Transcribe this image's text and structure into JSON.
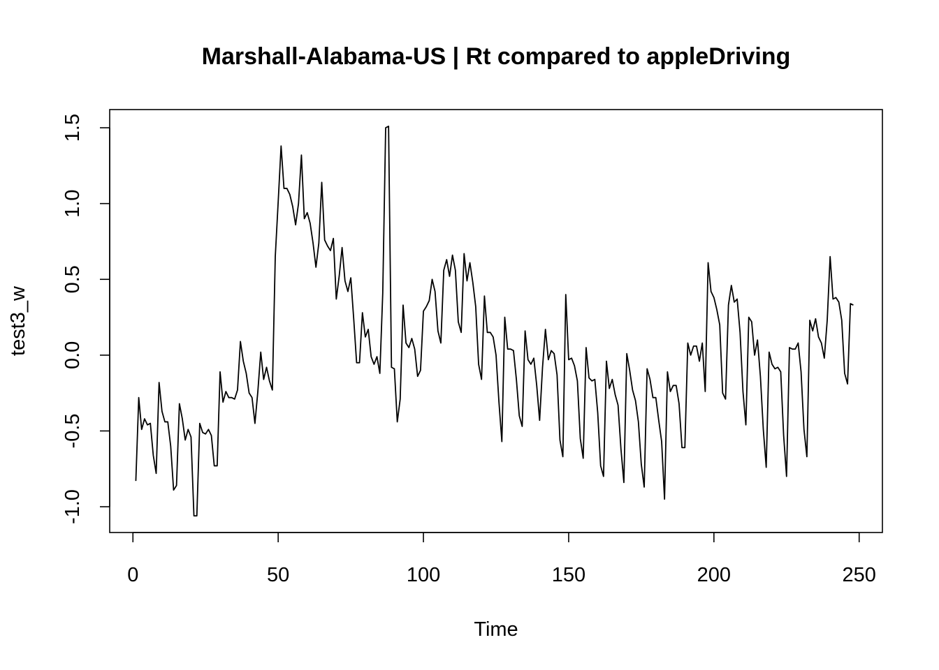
{
  "chart_data": {
    "type": "line",
    "title": "Marshall-Alabama-US | Rt compared to appleDriving",
    "xlabel": "Time",
    "ylabel": "test3_w",
    "xlim": [
      -8,
      258
    ],
    "ylim": [
      -1.17,
      1.62
    ],
    "x_ticks": [
      0,
      50,
      100,
      150,
      200,
      250
    ],
    "x_tick_labels": [
      "0",
      "50",
      "100",
      "150",
      "200",
      "250"
    ],
    "y_ticks": [
      -1.0,
      -0.5,
      0.0,
      0.5,
      1.0,
      1.5
    ],
    "y_tick_labels": [
      "-1.0",
      "-0.5",
      "0.0",
      "0.5",
      "1.0",
      "1.5"
    ],
    "grid": false,
    "legend": "none",
    "line_color": "#000000",
    "series": [
      {
        "x_start": 1,
        "values": [
          -0.83,
          -0.28,
          -0.49,
          -0.42,
          -0.46,
          -0.45,
          -0.66,
          -0.78,
          -0.18,
          -0.37,
          -0.44,
          -0.44,
          -0.6,
          -0.89,
          -0.86,
          -0.32,
          -0.42,
          -0.56,
          -0.49,
          -0.54,
          -1.06,
          -1.06,
          -0.45,
          -0.51,
          -0.52,
          -0.49,
          -0.53,
          -0.73,
          -0.73,
          -0.11,
          -0.31,
          -0.24,
          -0.28,
          -0.28,
          -0.29,
          -0.23,
          0.09,
          -0.04,
          -0.12,
          -0.25,
          -0.28,
          -0.45,
          -0.24,
          0.02,
          -0.16,
          -0.08,
          -0.17,
          -0.23,
          0.65,
          1.01,
          1.38,
          1.1,
          1.1,
          1.06,
          0.98,
          0.86,
          1.0,
          1.32,
          0.9,
          0.94,
          0.87,
          0.74,
          0.58,
          0.74,
          1.14,
          0.76,
          0.72,
          0.69,
          0.77,
          0.37,
          0.52,
          0.71,
          0.49,
          0.42,
          0.51,
          0.24,
          -0.05,
          -0.05,
          0.28,
          0.12,
          0.17,
          -0.01,
          -0.06,
          -0.01,
          -0.12,
          0.41,
          1.5,
          1.51,
          -0.08,
          -0.09,
          -0.44,
          -0.29,
          0.33,
          0.08,
          0.05,
          0.11,
          0.04,
          -0.14,
          -0.1,
          0.29,
          0.32,
          0.36,
          0.5,
          0.42,
          0.16,
          0.08,
          0.56,
          0.63,
          0.52,
          0.66,
          0.56,
          0.22,
          0.15,
          0.67,
          0.49,
          0.61,
          0.48,
          0.32,
          -0.06,
          -0.16,
          0.39,
          0.15,
          0.15,
          0.12,
          0.0,
          -0.31,
          -0.57,
          0.25,
          0.04,
          0.04,
          0.03,
          -0.16,
          -0.4,
          -0.47,
          0.16,
          -0.03,
          -0.06,
          -0.02,
          -0.2,
          -0.43,
          -0.08,
          0.17,
          -0.03,
          0.03,
          0.01,
          -0.13,
          -0.56,
          -0.67,
          0.4,
          -0.03,
          -0.02,
          -0.07,
          -0.17,
          -0.55,
          -0.68,
          0.05,
          -0.15,
          -0.17,
          -0.16,
          -0.38,
          -0.73,
          -0.8,
          -0.04,
          -0.22,
          -0.16,
          -0.26,
          -0.33,
          -0.62,
          -0.84,
          0.01,
          -0.1,
          -0.23,
          -0.3,
          -0.44,
          -0.72,
          -0.87,
          -0.09,
          -0.16,
          -0.28,
          -0.28,
          -0.43,
          -0.57,
          -0.95,
          -0.11,
          -0.24,
          -0.2,
          -0.2,
          -0.32,
          -0.61,
          -0.61,
          0.08,
          0.0,
          0.06,
          0.06,
          -0.04,
          0.08,
          -0.24,
          0.61,
          0.42,
          0.38,
          0.3,
          0.2,
          -0.25,
          -0.29,
          0.33,
          0.46,
          0.35,
          0.37,
          0.15,
          -0.24,
          -0.46,
          0.25,
          0.22,
          0.0,
          0.1,
          -0.14,
          -0.49,
          -0.74,
          0.02,
          -0.06,
          -0.09,
          -0.08,
          -0.11,
          -0.53,
          -0.8,
          0.05,
          0.04,
          0.04,
          0.08,
          -0.11,
          -0.49,
          -0.67,
          0.23,
          0.16,
          0.24,
          0.12,
          0.08,
          -0.02,
          0.23,
          0.65,
          0.37,
          0.38,
          0.35,
          0.23,
          -0.12,
          -0.19,
          0.34,
          0.33
        ]
      }
    ]
  }
}
